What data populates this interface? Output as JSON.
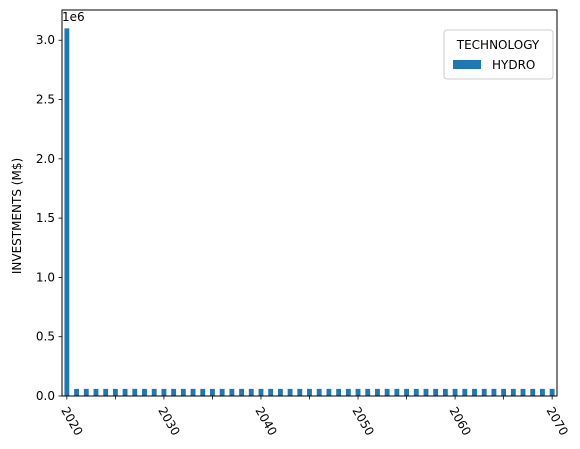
{
  "chart_data": {
    "type": "bar",
    "x": [
      2020,
      2021,
      2022,
      2023,
      2024,
      2025,
      2026,
      2027,
      2028,
      2029,
      2030,
      2031,
      2032,
      2033,
      2034,
      2035,
      2036,
      2037,
      2038,
      2039,
      2040,
      2041,
      2042,
      2043,
      2044,
      2045,
      2046,
      2047,
      2048,
      2049,
      2050,
      2051,
      2052,
      2053,
      2054,
      2055,
      2056,
      2057,
      2058,
      2059,
      2060,
      2061,
      2062,
      2063,
      2064,
      2065,
      2066,
      2067,
      2068,
      2069,
      2070
    ],
    "series": [
      {
        "name": "HYDRO",
        "color": "#1f77b4",
        "values": [
          3100000,
          60000,
          60000,
          60000,
          60000,
          60000,
          60000,
          60000,
          60000,
          60000,
          60000,
          60000,
          60000,
          60000,
          60000,
          60000,
          60000,
          60000,
          60000,
          60000,
          60000,
          60000,
          60000,
          60000,
          60000,
          60000,
          60000,
          60000,
          60000,
          60000,
          60000,
          60000,
          60000,
          60000,
          60000,
          60000,
          60000,
          60000,
          60000,
          60000,
          60000,
          60000,
          60000,
          60000,
          60000,
          60000,
          60000,
          60000,
          60000,
          60000,
          60000
        ]
      }
    ],
    "title": "",
    "xlabel": "",
    "ylabel": "INVESTMENTS (M$)",
    "ylim": [
      0,
      3255000
    ],
    "y_ticks": [
      0.0,
      0.5,
      1.0,
      1.5,
      2.0,
      2.5,
      3.0
    ],
    "y_tick_labels": [
      "0.0",
      "0.5",
      "1.0",
      "1.5",
      "2.0",
      "2.5",
      "3.0"
    ],
    "y_offset_label": "1e6",
    "y_tick_multiplier": 1000000,
    "x_tick_labels": [
      "2020",
      "2030",
      "2040",
      "2050",
      "2060",
      "2070"
    ],
    "x_minor_ticks": [
      2025,
      2035,
      2045,
      2055,
      2065
    ],
    "legend": {
      "title": "TECHNOLOGY",
      "placement": "top-right"
    },
    "grid": false
  }
}
